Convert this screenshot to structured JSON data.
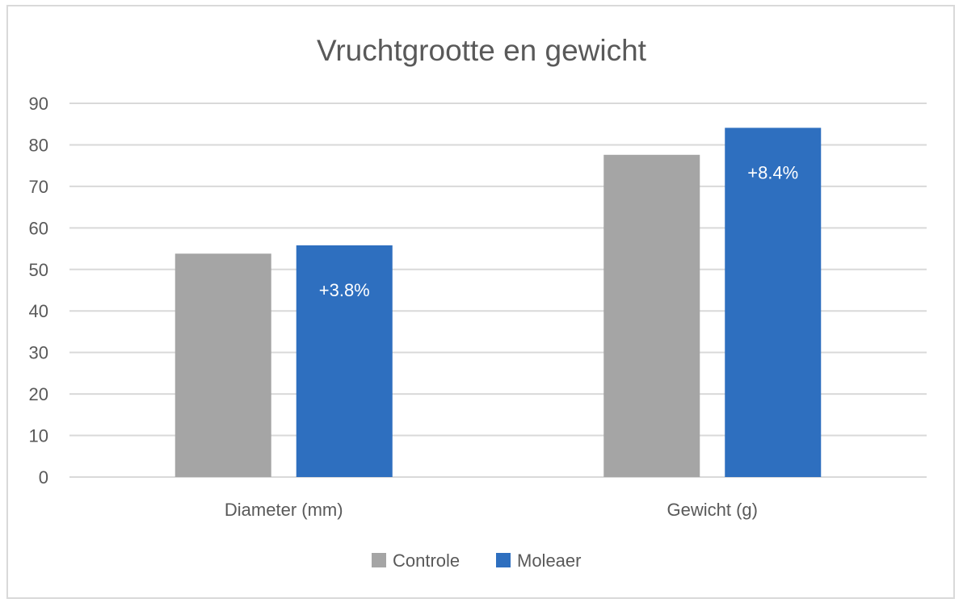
{
  "chart_data": {
    "type": "bar",
    "title": "Vruchtgrootte en gewicht",
    "categories": [
      "Diameter (mm)",
      "Gewicht (g)"
    ],
    "series": [
      {
        "name": "Controle",
        "values": [
          53.8,
          77.6
        ],
        "color": "#a5a5a5",
        "labels": [
          "",
          ""
        ]
      },
      {
        "name": "Moleaer",
        "values": [
          55.8,
          84.1
        ],
        "color": "#2e6fbf",
        "labels": [
          "+3.8%",
          "+8.4%"
        ]
      }
    ],
    "ylim": [
      0,
      90
    ],
    "yticks": [
      "0",
      "10",
      "20",
      "30",
      "40",
      "50",
      "60",
      "70",
      "80",
      "90"
    ],
    "grid": true,
    "legend": "bottom",
    "gridline_color": "#d9d9d9",
    "text_color": "#595959"
  }
}
